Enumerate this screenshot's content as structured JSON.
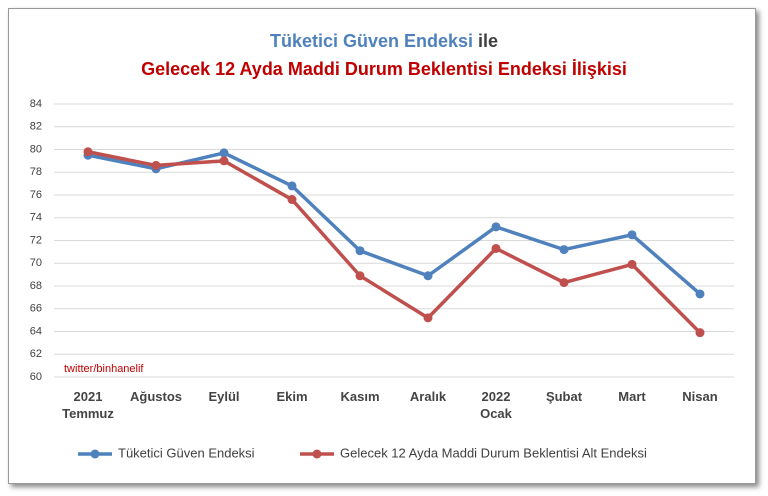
{
  "chart_data": {
    "type": "line",
    "title_parts": [
      "Tüketici Güven Endeksi",
      "ile",
      "Gelecek 12 Ayda Maddi Durum Beklentisi Endeksi İlişkisi"
    ],
    "annotation": "twitter/binhanelif",
    "categories": [
      "2021 Temmuz",
      "Ağustos",
      "Eylül",
      "Ekim",
      "Kasım",
      "Aralık",
      "2022 Ocak",
      "Şubat",
      "Mart",
      "Nisan"
    ],
    "series": [
      {
        "name": "Tüketici Güven Endeksi",
        "color": "#4f81bd",
        "values": [
          79.5,
          78.3,
          79.7,
          76.8,
          71.1,
          68.9,
          73.2,
          71.2,
          72.5,
          67.3
        ]
      },
      {
        "name": "Gelecek 12 Ayda Maddi Durum Beklentisi Alt Endeksi",
        "color": "#c0504d",
        "values": [
          79.8,
          78.6,
          79.0,
          75.6,
          68.9,
          65.2,
          71.3,
          68.3,
          69.9,
          63.9
        ]
      }
    ],
    "ylim": [
      60,
      84
    ],
    "yticks": [
      60,
      62,
      64,
      66,
      68,
      70,
      72,
      74,
      76,
      78,
      80,
      82,
      84
    ],
    "grid": true
  }
}
